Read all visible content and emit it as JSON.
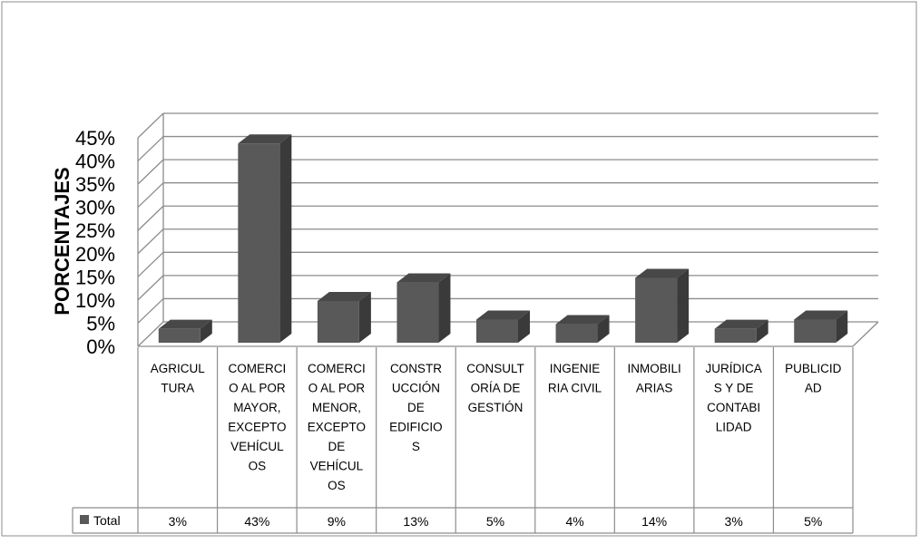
{
  "chart_data": {
    "type": "bar",
    "title": "",
    "xlabel": "",
    "ylabel": "PORCENTAJES",
    "ylim": [
      0,
      0.45
    ],
    "yticks": [
      "0%",
      "5%",
      "10%",
      "15%",
      "20%",
      "25%",
      "30%",
      "35%",
      "40%",
      "45%"
    ],
    "grid": true,
    "style": "3d-column",
    "bar_color": "#595959",
    "categories": [
      "AGRICULTURA",
      "COMERCIO AL POR MAYOR, EXCEPTO VEHÍCULOS",
      "COMERCIO AL POR MENOR, EXCEPTO DE VEHÍCULOS",
      "CONSTRUCCIÓN DE EDIFICIOS",
      "CONSULTORÍA DE GESTIÓN",
      "INGENIERIA CIVIL",
      "INMOBILIARIAS",
      "JURÍDICAS Y DE CONTABILIDAD",
      "PUBLICIDAD"
    ],
    "category_lines": [
      [
        "AGRICUL",
        "TURA"
      ],
      [
        "COMERCI",
        "O AL POR",
        "MAYOR,",
        "EXCEPTO",
        "VEHÍCUL",
        "OS"
      ],
      [
        "COMERCI",
        "O AL POR",
        "MENOR,",
        "EXCEPTO",
        "DE",
        "VEHÍCUL",
        "OS"
      ],
      [
        "CONSTR",
        "UCCIÓN",
        "DE",
        "EDIFICIO",
        "S"
      ],
      [
        "CONSULT",
        "ORÍA DE",
        "GESTIÓN"
      ],
      [
        "INGENIE",
        "RIA CIVIL"
      ],
      [
        "INMOBILI",
        "ARIAS"
      ],
      [
        "JURÍDICA",
        "S Y DE",
        "CONTABI",
        "LIDAD"
      ],
      [
        "PUBLICID",
        "AD"
      ]
    ],
    "series": [
      {
        "name": "Total",
        "values": [
          0.03,
          0.43,
          0.09,
          0.13,
          0.05,
          0.04,
          0.14,
          0.03,
          0.05
        ],
        "labels": [
          "3%",
          "43%",
          "9%",
          "13%",
          "5%",
          "4%",
          "14%",
          "3%",
          "5%"
        ]
      }
    ]
  }
}
